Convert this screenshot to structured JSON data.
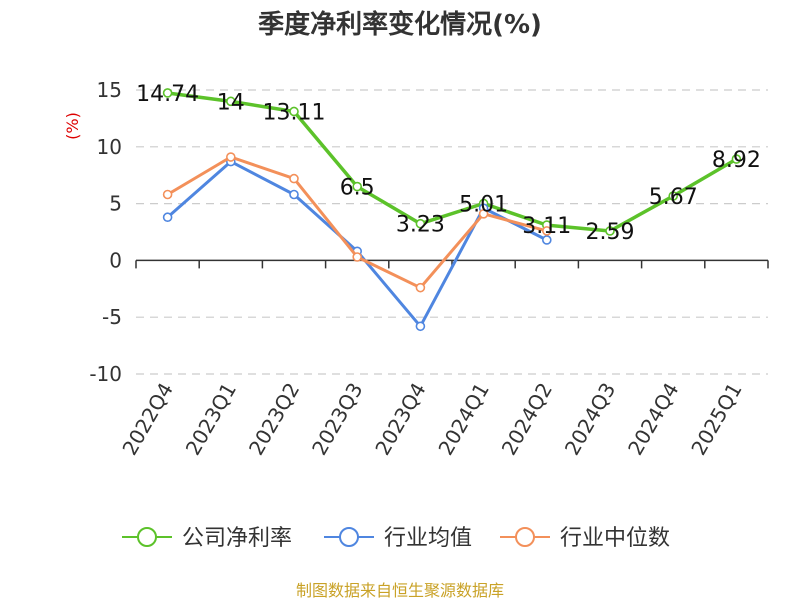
{
  "title": "季度净利率变化情况(%)",
  "source": "制图数据来自恒生聚源数据库",
  "colors": {
    "company": "#5cc22a",
    "industry_avg": "#4f86e0",
    "industry_median": "#f3905a",
    "source": "#c9a227",
    "unit": "#dd0000"
  },
  "chart_data": {
    "type": "line",
    "title": "季度净利率变化情况(%)",
    "ylabel": "(%)",
    "xlabel": "",
    "ylim": [
      -10,
      15
    ],
    "yticks": [
      15,
      10,
      5,
      0,
      -5,
      -10
    ],
    "grid": true,
    "legend_position": "bottom",
    "categories": [
      "2022Q4",
      "2023Q1",
      "2023Q2",
      "2023Q3",
      "2023Q4",
      "2024Q1",
      "2024Q2",
      "2024Q3",
      "2024Q4",
      "2025Q1"
    ],
    "series": [
      {
        "name": "公司净利率",
        "values": [
          14.74,
          14,
          13.11,
          6.5,
          3.23,
          5.01,
          3.11,
          2.59,
          5.67,
          8.92
        ],
        "labels": [
          "14.74",
          "14",
          "13.11",
          "6.5",
          "3.23",
          "5.01",
          "3.11",
          "2.59",
          "5.67",
          "8.92"
        ],
        "color": "#5cc22a"
      },
      {
        "name": "行业均值",
        "values": [
          3.8,
          8.7,
          5.8,
          0.8,
          -5.8,
          4.6,
          1.8,
          null,
          null,
          null
        ],
        "color": "#4f86e0"
      },
      {
        "name": "行业中位数",
        "values": [
          5.8,
          9.1,
          7.2,
          0.3,
          -2.4,
          4.1,
          2.6,
          null,
          null,
          null
        ],
        "color": "#f3905a"
      }
    ]
  }
}
